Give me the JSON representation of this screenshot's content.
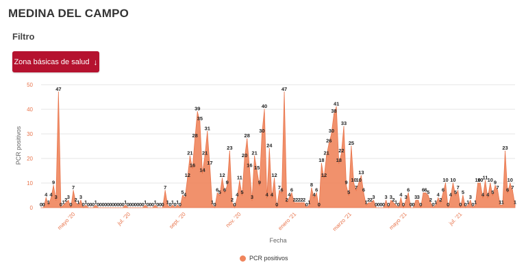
{
  "header": {
    "title": "MEDINA DEL CAMPO"
  },
  "filter": {
    "label": "Filtro",
    "button_label": "Zona básicas de salud",
    "button_icon": "arrow-down-icon"
  },
  "colors": {
    "accent": "#b5122f",
    "series": "#f0855c",
    "axis": "#e8734a"
  },
  "chart_data": {
    "type": "area",
    "xlabel": "Fecha",
    "ylabel": "PCR positivos",
    "ylim": [
      0,
      50
    ],
    "yticks": [
      "0",
      "10",
      "20",
      "30",
      "40",
      "50"
    ],
    "xticks": [
      "mayo '20",
      "jul. '20",
      "sept. '20",
      "nov. '20",
      "enero '21",
      "marzo '21",
      "mayo '21",
      "jul. '21"
    ],
    "grid": true,
    "legend_position": "bottom",
    "series": [
      {
        "name": "PCR positivos",
        "values": [
          0,
          0,
          4,
          1,
          4,
          9,
          3,
          47,
          0,
          1,
          2,
          3,
          0,
          7,
          2,
          1,
          3,
          0,
          1,
          0,
          0,
          0,
          1,
          0,
          0,
          0,
          0,
          0,
          0,
          0,
          0,
          0,
          0,
          0,
          1,
          0,
          0,
          0,
          0,
          0,
          0,
          0,
          1,
          0,
          0,
          0,
          1,
          0,
          0,
          0,
          7,
          1,
          0,
          1,
          0,
          1,
          0,
          5,
          4,
          12,
          21,
          16,
          28,
          39,
          35,
          14,
          21,
          31,
          17,
          1,
          0,
          6,
          5,
          12,
          6,
          9,
          23,
          2,
          0,
          4,
          11,
          5,
          20,
          28,
          16,
          3,
          21,
          15,
          9,
          30,
          40,
          4,
          24,
          4,
          12,
          0,
          7,
          6,
          47,
          2,
          4,
          6,
          2,
          2,
          2,
          2,
          2,
          0,
          1,
          8,
          4,
          6,
          0,
          18,
          12,
          21,
          26,
          30,
          38,
          41,
          18,
          22,
          33,
          9,
          5,
          25,
          10,
          7,
          10,
          13,
          6,
          1,
          2,
          2,
          3,
          0,
          0,
          0,
          0,
          3,
          0,
          3,
          2,
          1,
          0,
          4,
          0,
          3,
          6,
          0,
          0,
          3,
          3,
          0,
          6,
          6,
          5,
          2,
          0,
          1,
          4,
          2,
          6,
          10,
          0,
          4,
          10,
          5,
          7,
          0,
          5,
          0,
          1,
          3,
          0,
          1,
          10,
          10,
          4,
          11,
          4,
          10,
          5,
          9,
          7,
          1,
          1,
          23,
          6,
          10,
          7,
          1
        ]
      }
    ]
  }
}
